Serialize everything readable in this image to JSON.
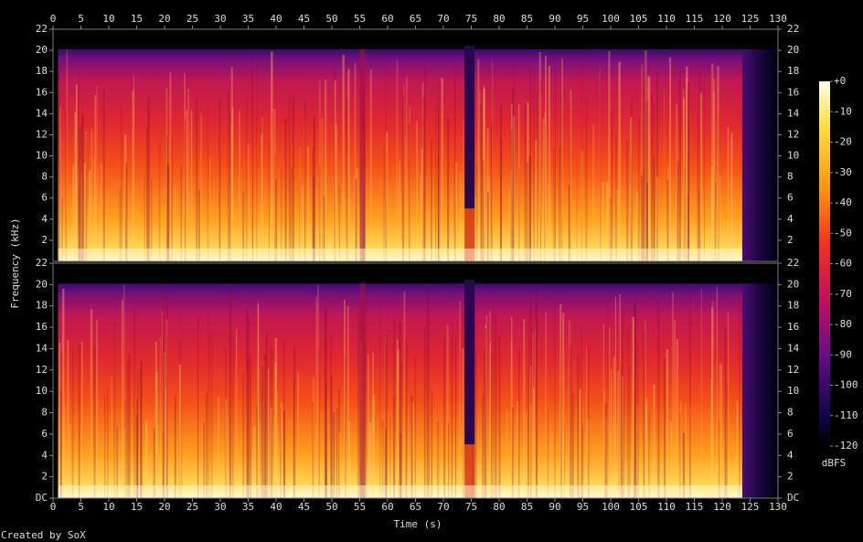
{
  "chart_data": {
    "type": "spectrogram",
    "xlabel": "Time (s)",
    "ylabel": "Frequency (kHz)",
    "credit": "Created by SoX",
    "xlim": [
      0,
      130
    ],
    "xticks": [
      0,
      5,
      10,
      15,
      20,
      25,
      30,
      35,
      40,
      45,
      50,
      55,
      60,
      65,
      70,
      75,
      80,
      85,
      90,
      95,
      100,
      105,
      110,
      115,
      120,
      125,
      130
    ],
    "channels": [
      {
        "ylim": [
          0,
          22
        ],
        "yticks": [
          2,
          4,
          6,
          8,
          10,
          12,
          14,
          16,
          18,
          20,
          22
        ]
      },
      {
        "ylim": [
          0,
          22
        ],
        "yticks": [
          {
            "value": 0,
            "label": "DC"
          },
          2,
          4,
          6,
          8,
          10,
          12,
          14,
          16,
          18,
          20,
          22
        ]
      }
    ],
    "colorbar": {
      "label": "dBFS",
      "lim": [
        -120,
        0
      ],
      "ticks": [
        {
          "value": 0,
          "label": "+0"
        },
        -10,
        -20,
        -30,
        -40,
        -50,
        -60,
        -70,
        -80,
        -90,
        -100,
        -110,
        -120
      ]
    }
  }
}
